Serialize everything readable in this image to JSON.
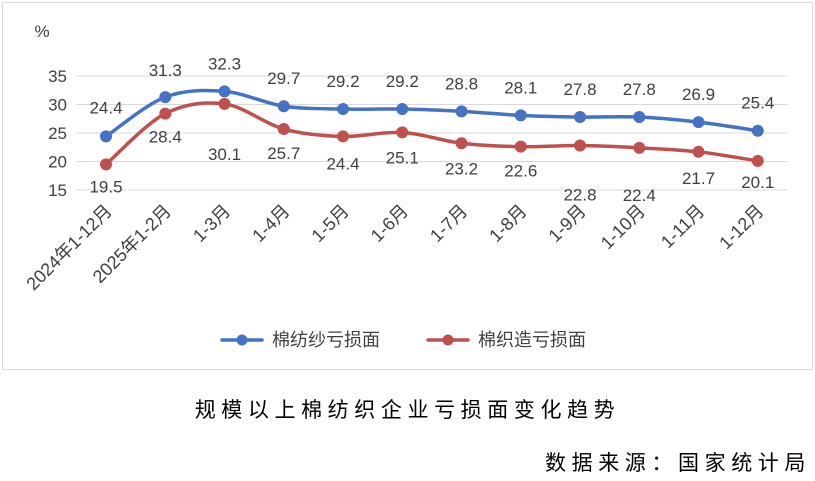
{
  "chart_data": {
    "type": "line",
    "title": "规模以上棉纺织企业亏损面变化趋势",
    "ylabel": "%",
    "xlabel": "",
    "categories": [
      "2024年1-12月",
      "2025年1-2月",
      "1-3月",
      "1-4月",
      "1-5月",
      "1-6月",
      "1-7月",
      "1-8月",
      "1-9月",
      "1-10月",
      "1-11月",
      "1-12月"
    ],
    "series": [
      {
        "name": "棉纺纱亏损面",
        "color": "#4472C4",
        "values": [
          24.4,
          31.3,
          32.3,
          29.7,
          29.2,
          29.2,
          28.8,
          28.1,
          27.8,
          27.8,
          26.9,
          25.4
        ]
      },
      {
        "name": "棉织造亏损面",
        "color": "#C0504D",
        "values": [
          19.5,
          28.4,
          30.1,
          25.7,
          24.4,
          25.1,
          23.2,
          22.6,
          22.8,
          22.4,
          21.7,
          20.1
        ]
      }
    ],
    "yticks": [
      15,
      20,
      25,
      30,
      35
    ],
    "ylim": [
      15,
      35
    ],
    "grid": true,
    "smooth": true,
    "data_labels": true,
    "legend": "bottom"
  },
  "source": "数据来源：国家统计局"
}
